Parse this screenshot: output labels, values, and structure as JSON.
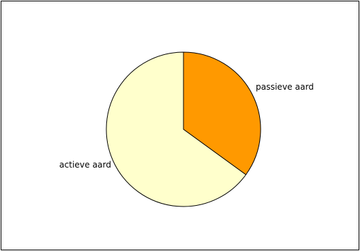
{
  "chart_data": {
    "type": "pie",
    "title": "",
    "slices": [
      {
        "label": "passieve aard",
        "value": 35,
        "color": "#ff9900"
      },
      {
        "label": "actieve aard",
        "value": 65,
        "color": "#ffffcc"
      }
    ],
    "start_angle_deg": 0,
    "direction": "clockwise",
    "legend": "none",
    "outline_color": "#000000"
  }
}
